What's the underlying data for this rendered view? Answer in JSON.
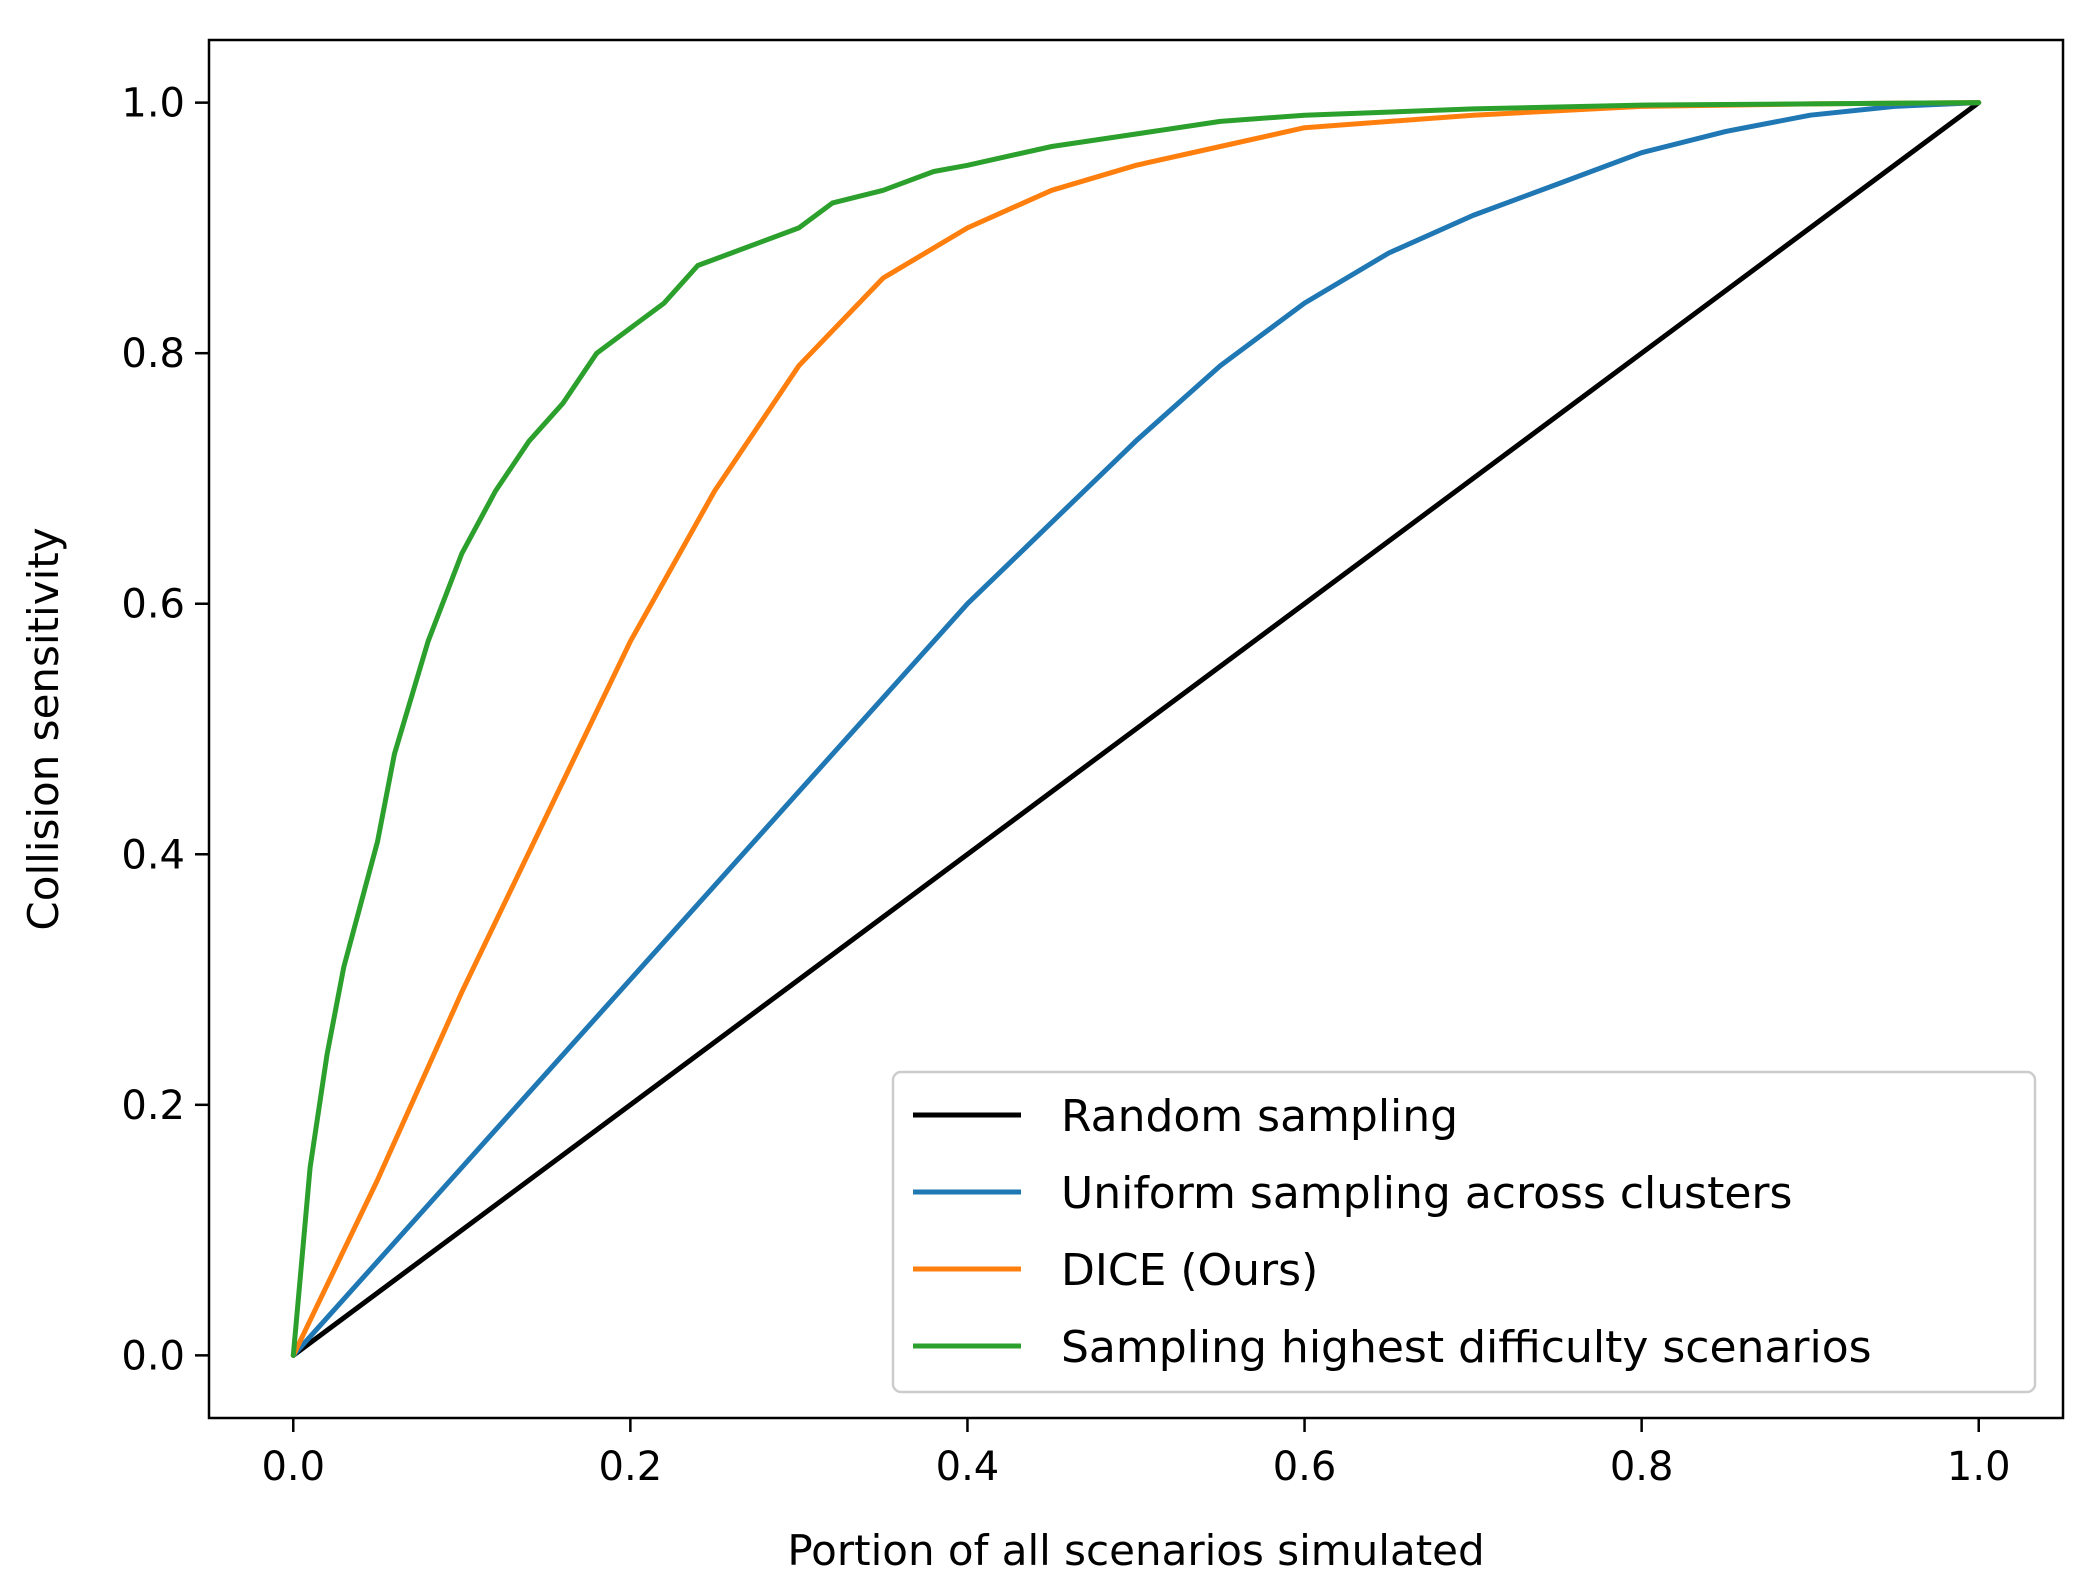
{
  "chart_data": {
    "type": "line",
    "title": "",
    "xlabel": "Portion of all scenarios simulated",
    "ylabel": "Collision sensitivity",
    "xlim": [
      -0.05,
      1.05
    ],
    "ylim": [
      -0.05,
      1.05
    ],
    "xticks": [
      "0.0",
      "0.2",
      "0.4",
      "0.6",
      "0.8",
      "1.0"
    ],
    "yticks": [
      "0.0",
      "0.2",
      "0.4",
      "0.6",
      "0.8",
      "1.0"
    ],
    "grid": false,
    "legend_position": "lower-right",
    "series": [
      {
        "name": "Random sampling",
        "color": "#000000",
        "x": [
          0,
          1
        ],
        "y": [
          0,
          1
        ]
      },
      {
        "name": "Uniform sampling across clusters",
        "color": "#1f77b4",
        "x": [
          0,
          0.1,
          0.2,
          0.3,
          0.4,
          0.5,
          0.55,
          0.6,
          0.65,
          0.7,
          0.75,
          0.8,
          0.85,
          0.9,
          0.95,
          1.0
        ],
        "y": [
          0,
          0.15,
          0.3,
          0.45,
          0.6,
          0.73,
          0.79,
          0.84,
          0.88,
          0.91,
          0.935,
          0.96,
          0.977,
          0.99,
          0.997,
          1.0
        ]
      },
      {
        "name": "DICE (Ours)",
        "color": "#ff7f0e",
        "x": [
          0,
          0.05,
          0.1,
          0.15,
          0.2,
          0.25,
          0.3,
          0.35,
          0.4,
          0.45,
          0.5,
          0.55,
          0.6,
          0.7,
          0.8,
          0.9,
          1.0
        ],
        "y": [
          0,
          0.14,
          0.29,
          0.43,
          0.57,
          0.69,
          0.79,
          0.86,
          0.9,
          0.93,
          0.95,
          0.965,
          0.98,
          0.99,
          0.997,
          0.999,
          1.0
        ]
      },
      {
        "name": "Sampling highest difficulty scenarios",
        "color": "#2ca02c",
        "x": [
          0,
          0.01,
          0.02,
          0.03,
          0.05,
          0.06,
          0.08,
          0.1,
          0.12,
          0.14,
          0.16,
          0.18,
          0.2,
          0.22,
          0.24,
          0.26,
          0.3,
          0.32,
          0.35,
          0.38,
          0.4,
          0.45,
          0.5,
          0.55,
          0.6,
          0.7,
          0.8,
          0.9,
          1.0
        ],
        "y": [
          0,
          0.15,
          0.24,
          0.31,
          0.41,
          0.48,
          0.57,
          0.64,
          0.69,
          0.73,
          0.76,
          0.8,
          0.82,
          0.84,
          0.87,
          0.88,
          0.9,
          0.92,
          0.93,
          0.945,
          0.95,
          0.965,
          0.975,
          0.985,
          0.99,
          0.995,
          0.998,
          0.999,
          1.0
        ]
      }
    ]
  }
}
